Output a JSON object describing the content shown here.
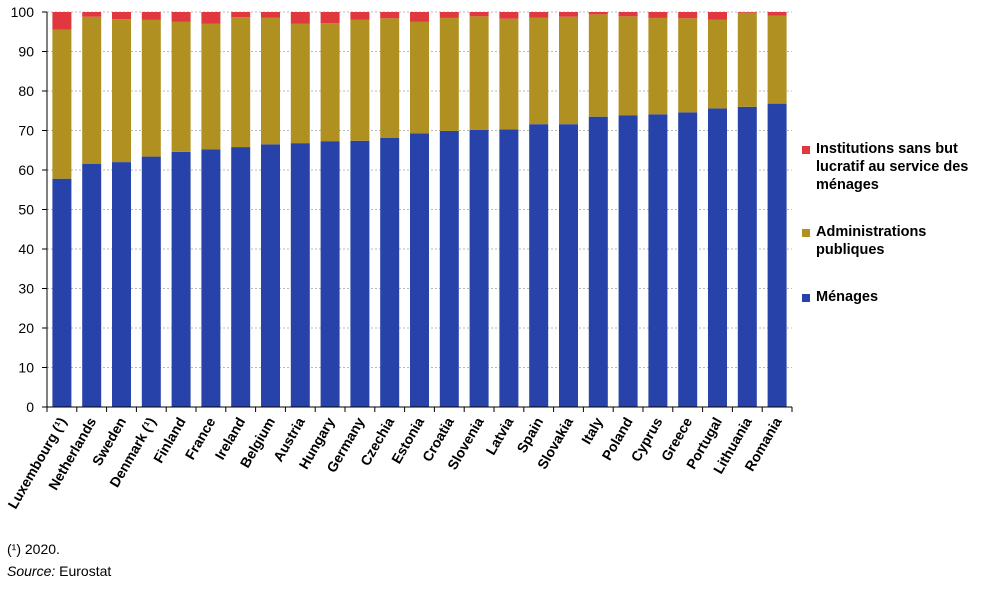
{
  "chart_data": {
    "type": "bar",
    "stacked": true,
    "categories": [
      "Luxembourg (¹)",
      "Netherlands",
      "Sweden",
      "Denmark (¹)",
      "Finland",
      "France",
      "Ireland",
      "Belgium",
      "Austria",
      "Hungary",
      "Germany",
      "Czechia",
      "Estonia",
      "Croatia",
      "Slovenia",
      "Latvia",
      "Spain",
      "Slovakia",
      "Italy",
      "Poland",
      "Cyprus",
      "Greece",
      "Portugal",
      "Lithuania",
      "Romania"
    ],
    "series": [
      {
        "name": "Ménages",
        "color": "#2742a8",
        "values": [
          57.8,
          61.6,
          62.0,
          63.4,
          64.6,
          65.2,
          65.8,
          66.5,
          66.8,
          67.3,
          67.4,
          68.1,
          69.3,
          69.9,
          70.2,
          70.3,
          71.6,
          71.6,
          73.5,
          73.8,
          74.1,
          74.6,
          75.6,
          76.0,
          76.8
        ]
      },
      {
        "name": "Administrations publiques",
        "color": "#b09020",
        "values": [
          37.7,
          37.2,
          36.2,
          34.6,
          32.9,
          31.8,
          32.9,
          32.1,
          30.2,
          29.9,
          30.7,
          30.3,
          28.2,
          28.6,
          28.7,
          28.0,
          27.0,
          27.2,
          25.9,
          25.1,
          24.4,
          23.8,
          22.5,
          23.8,
          22.3
        ]
      },
      {
        "name": "Institutions sans but lucratif au service des ménages",
        "color": "#e0383e",
        "values": [
          4.5,
          1.2,
          1.8,
          2.0,
          2.5,
          3.0,
          1.3,
          1.4,
          3.0,
          2.8,
          1.9,
          1.6,
          2.5,
          1.5,
          1.1,
          1.7,
          1.4,
          1.2,
          0.6,
          1.1,
          1.5,
          1.6,
          1.9,
          0.2,
          0.9
        ]
      }
    ],
    "ylim": [
      0,
      100
    ],
    "yticks": [
      0,
      10,
      20,
      30,
      40,
      50,
      60,
      70,
      80,
      90,
      100
    ],
    "grid": true,
    "legend_position": "right",
    "xlabel": "",
    "ylabel": ""
  },
  "legend": [
    {
      "label": "Institutions sans but lucratif au service des ménages",
      "color": "#e0383e"
    },
    {
      "label": "Administrations publiques",
      "color": "#b09020"
    },
    {
      "label": "Ménages",
      "color": "#2742a8"
    }
  ],
  "footnote": "(¹) 2020.",
  "source_label": "Source:",
  "source_value": " Eurostat"
}
